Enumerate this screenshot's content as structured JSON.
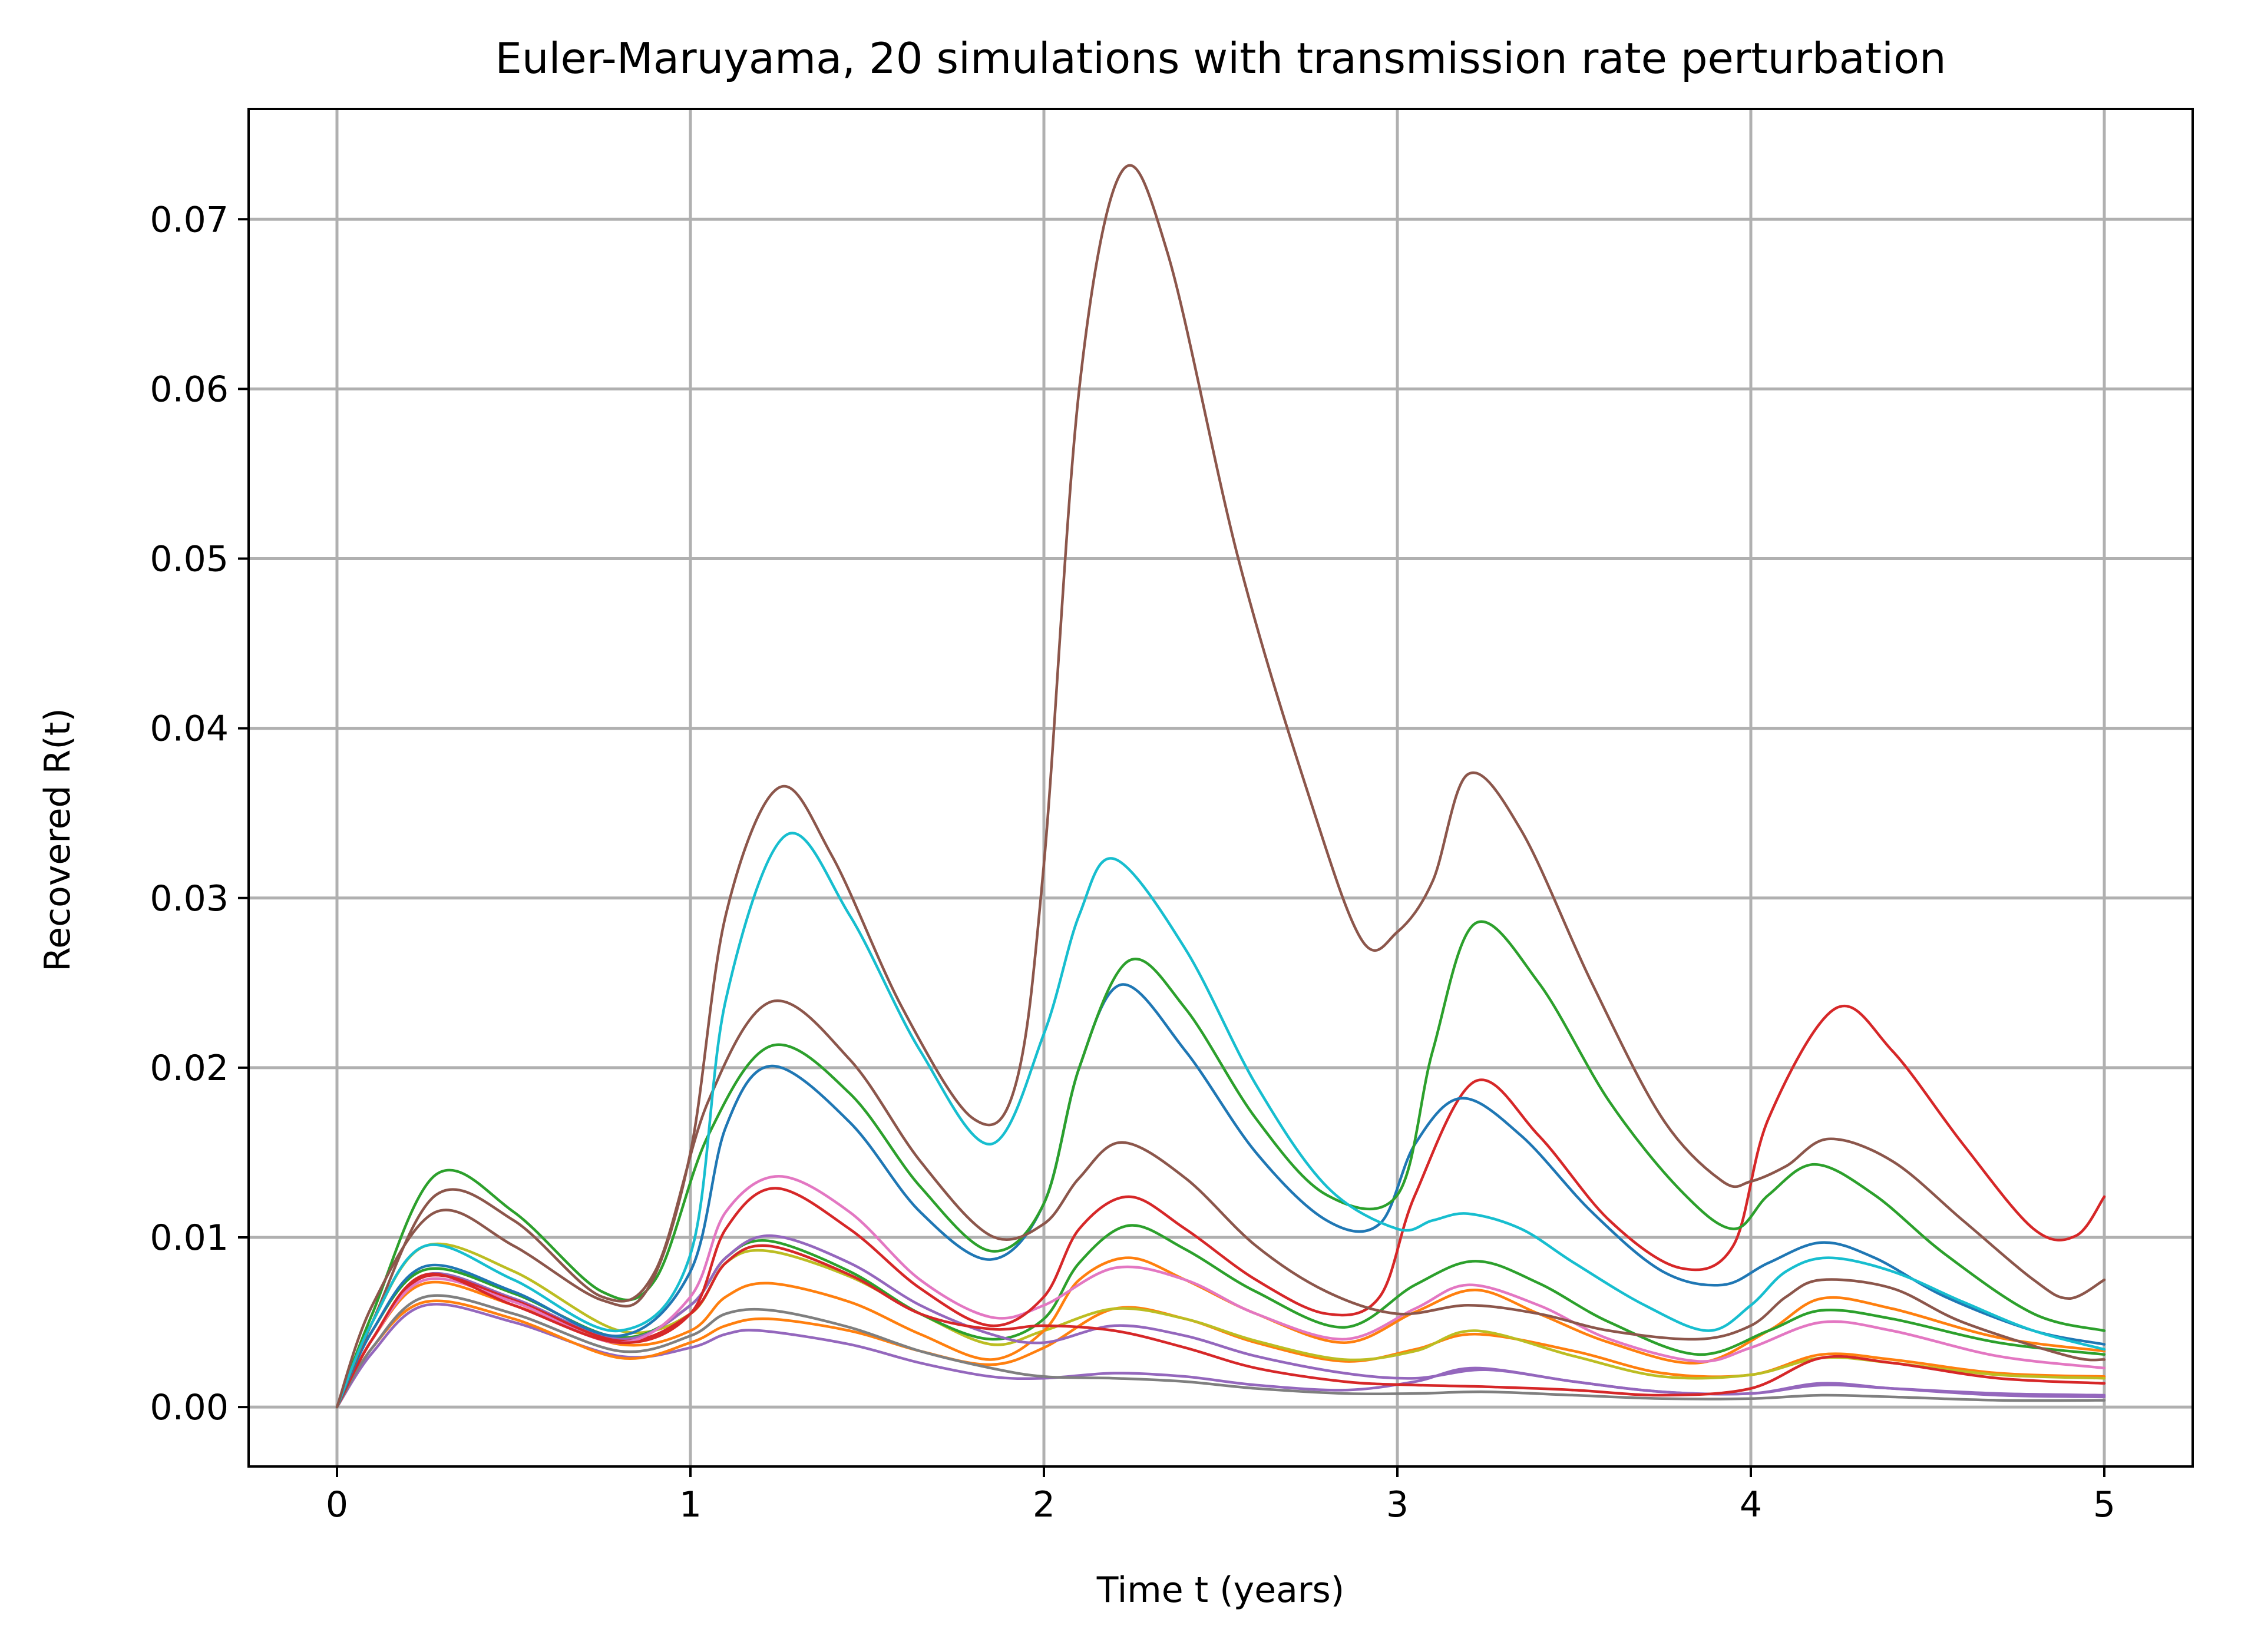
{
  "chart_data": {
    "type": "line",
    "title": "Euler-Maruyama, 20 simulations with transmission rate perturbation",
    "xlabel": "Time t (years)",
    "ylabel": "Recovered R(t)",
    "xlim": [
      -0.25,
      5.25
    ],
    "ylim": [
      -0.0035,
      0.0765
    ],
    "xticks": [
      0,
      1,
      2,
      3,
      4,
      5
    ],
    "xtick_labels": [
      "0",
      "1",
      "2",
      "3",
      "4",
      "5"
    ],
    "yticks": [
      0.0,
      0.01,
      0.02,
      0.03,
      0.04,
      0.05,
      0.06,
      0.07
    ],
    "ytick_labels": [
      "0.00",
      "0.01",
      "0.02",
      "0.03",
      "0.04",
      "0.05",
      "0.06",
      "0.07"
    ],
    "grid": true,
    "legend": "none",
    "series": [
      {
        "color": "#8c564b",
        "x": [
          0,
          0.1,
          0.28,
          0.5,
          0.75,
          0.88,
          1.0,
          1.1,
          1.25,
          1.4,
          1.6,
          1.8,
          1.92,
          2.0,
          2.1,
          2.22,
          2.35,
          2.55,
          2.75,
          2.9,
          3.0,
          3.1,
          3.2,
          3.35,
          3.55,
          3.75,
          3.92,
          4.0,
          4.1,
          4.22,
          4.4,
          4.6,
          4.8,
          4.9,
          5.0
        ],
        "y": [
          0,
          0.006,
          0.0115,
          0.0095,
          0.0063,
          0.007,
          0.015,
          0.029,
          0.0365,
          0.0325,
          0.0235,
          0.017,
          0.019,
          0.032,
          0.06,
          0.0728,
          0.068,
          0.05,
          0.036,
          0.0275,
          0.028,
          0.031,
          0.0373,
          0.034,
          0.025,
          0.017,
          0.0133,
          0.0133,
          0.0142,
          0.0158,
          0.0145,
          0.011,
          0.0075,
          0.0064,
          0.0075
        ]
      },
      {
        "color": "#17becf",
        "x": [
          0,
          0.1,
          0.25,
          0.5,
          0.8,
          1.0,
          1.1,
          1.27,
          1.45,
          1.65,
          1.85,
          2.0,
          2.1,
          2.2,
          2.4,
          2.6,
          2.8,
          3.0,
          3.1,
          3.2,
          3.35,
          3.5,
          3.7,
          3.88,
          4.0,
          4.1,
          4.22,
          4.4,
          4.6,
          4.8,
          5.0
        ],
        "y": [
          0,
          0.005,
          0.0095,
          0.0075,
          0.0045,
          0.009,
          0.024,
          0.0337,
          0.029,
          0.021,
          0.0155,
          0.022,
          0.029,
          0.0323,
          0.027,
          0.019,
          0.013,
          0.0105,
          0.011,
          0.0114,
          0.0105,
          0.0085,
          0.006,
          0.0045,
          0.006,
          0.008,
          0.0088,
          0.008,
          0.0062,
          0.0045,
          0.0034
        ]
      },
      {
        "color": "#8c564b",
        "x": [
          0,
          0.1,
          0.28,
          0.5,
          0.75,
          0.9,
          1.05,
          1.23,
          1.45,
          1.65,
          1.85,
          2.0,
          2.1,
          2.22,
          2.4,
          2.6,
          2.8,
          3.0,
          3.2,
          3.4,
          3.6,
          3.85,
          4.0,
          4.1,
          4.2,
          4.4,
          4.6,
          4.9,
          5.0
        ],
        "y": [
          0,
          0.005,
          0.0125,
          0.011,
          0.0065,
          0.008,
          0.018,
          0.0239,
          0.0205,
          0.0145,
          0.0101,
          0.0108,
          0.0135,
          0.0156,
          0.0135,
          0.0095,
          0.0068,
          0.0055,
          0.006,
          0.0055,
          0.0045,
          0.004,
          0.0048,
          0.0065,
          0.0075,
          0.007,
          0.005,
          0.003,
          0.0028
        ]
      },
      {
        "color": "#2ca02c",
        "x": [
          0,
          0.1,
          0.28,
          0.5,
          0.75,
          0.9,
          1.05,
          1.23,
          1.45,
          1.65,
          1.85,
          2.0,
          2.1,
          2.24,
          2.4,
          2.6,
          2.8,
          3.0,
          3.1,
          3.22,
          3.4,
          3.6,
          3.8,
          3.95,
          4.05,
          4.18,
          4.35,
          4.55,
          4.8,
          5.0
        ],
        "y": [
          0,
          0.0055,
          0.0137,
          0.0115,
          0.0068,
          0.0075,
          0.016,
          0.0213,
          0.0185,
          0.013,
          0.0092,
          0.012,
          0.02,
          0.0263,
          0.0235,
          0.017,
          0.0125,
          0.0125,
          0.021,
          0.0285,
          0.025,
          0.018,
          0.0128,
          0.0105,
          0.0125,
          0.0143,
          0.0125,
          0.009,
          0.0055,
          0.0045
        ]
      },
      {
        "color": "#1f77b4",
        "x": [
          0,
          0.1,
          0.25,
          0.5,
          0.8,
          1.0,
          1.1,
          1.23,
          1.45,
          1.65,
          1.85,
          2.0,
          2.1,
          2.22,
          2.4,
          2.6,
          2.8,
          2.95,
          3.05,
          3.18,
          3.35,
          3.55,
          3.75,
          3.92,
          4.05,
          4.2,
          4.35,
          4.55,
          4.8,
          5.0
        ],
        "y": [
          0,
          0.0045,
          0.0083,
          0.0068,
          0.0042,
          0.008,
          0.0165,
          0.0201,
          0.0168,
          0.0115,
          0.0087,
          0.012,
          0.02,
          0.0249,
          0.021,
          0.015,
          0.011,
          0.0108,
          0.0155,
          0.0182,
          0.016,
          0.0115,
          0.008,
          0.0072,
          0.0085,
          0.0097,
          0.0088,
          0.0065,
          0.0045,
          0.0037
        ]
      },
      {
        "color": "#d62728",
        "x": [
          0,
          0.1,
          0.25,
          0.5,
          0.8,
          1.0,
          1.1,
          1.24,
          1.45,
          1.65,
          1.85,
          2.0,
          2.1,
          2.24,
          2.4,
          2.6,
          2.8,
          2.95,
          3.05,
          3.22,
          3.4,
          3.6,
          3.8,
          3.95,
          4.05,
          4.24,
          4.4,
          4.6,
          4.8,
          4.92,
          5.0
        ],
        "y": [
          0,
          0.004,
          0.0078,
          0.006,
          0.0038,
          0.0055,
          0.0105,
          0.0129,
          0.0105,
          0.007,
          0.0048,
          0.0065,
          0.0105,
          0.0124,
          0.0105,
          0.0075,
          0.0055,
          0.0065,
          0.0125,
          0.0192,
          0.016,
          0.011,
          0.0082,
          0.0095,
          0.017,
          0.0235,
          0.021,
          0.0155,
          0.0105,
          0.0101,
          0.0124
        ]
      },
      {
        "color": "#e377c2",
        "x": [
          0,
          0.1,
          0.25,
          0.5,
          0.8,
          1.0,
          1.1,
          1.25,
          1.45,
          1.65,
          1.85,
          2.0,
          2.2,
          2.4,
          2.6,
          2.85,
          3.05,
          3.2,
          3.4,
          3.6,
          3.85,
          4.0,
          4.2,
          4.4,
          4.7,
          5.0
        ],
        "y": [
          0,
          0.004,
          0.0075,
          0.0062,
          0.0038,
          0.0065,
          0.0115,
          0.0136,
          0.0115,
          0.0075,
          0.0053,
          0.006,
          0.0082,
          0.0075,
          0.0055,
          0.004,
          0.0058,
          0.0072,
          0.006,
          0.004,
          0.0027,
          0.0035,
          0.005,
          0.0045,
          0.003,
          0.0023
        ]
      },
      {
        "color": "#d62728",
        "x": [
          0,
          0.1,
          0.25,
          0.5,
          0.8,
          1.0,
          1.1,
          1.22,
          1.45,
          1.65,
          1.85,
          2.0,
          2.2,
          2.4,
          2.6,
          2.85,
          3.05,
          3.25,
          3.5,
          3.75,
          4.0,
          4.2,
          4.4,
          4.7,
          5.0
        ],
        "y": [
          0,
          0.004,
          0.0077,
          0.0063,
          0.0039,
          0.0055,
          0.0085,
          0.0095,
          0.0078,
          0.0055,
          0.0046,
          0.0048,
          0.0045,
          0.0035,
          0.0023,
          0.0015,
          0.0013,
          0.0012,
          0.001,
          0.0007,
          0.0011,
          0.0029,
          0.0026,
          0.0017,
          0.0014
        ]
      },
      {
        "color": "#9467bd",
        "x": [
          0,
          0.1,
          0.25,
          0.5,
          0.8,
          1.0,
          1.1,
          1.23,
          1.45,
          1.65,
          1.85,
          2.0,
          2.2,
          2.4,
          2.6,
          2.85,
          3.05,
          3.25,
          3.5,
          3.75,
          4.0,
          4.2,
          4.4,
          4.7,
          5.0
        ],
        "y": [
          0,
          0.004,
          0.0078,
          0.0064,
          0.004,
          0.006,
          0.0088,
          0.0101,
          0.0085,
          0.006,
          0.0043,
          0.0038,
          0.0048,
          0.0042,
          0.003,
          0.002,
          0.0017,
          0.0022,
          0.0015,
          0.0009,
          0.0008,
          0.0014,
          0.0011,
          0.0007,
          0.0006
        ]
      },
      {
        "color": "#2ca02c",
        "x": [
          0,
          0.1,
          0.25,
          0.5,
          0.8,
          1.0,
          1.1,
          1.22,
          1.45,
          1.65,
          1.85,
          2.0,
          2.1,
          2.24,
          2.4,
          2.6,
          2.85,
          3.05,
          3.22,
          3.4,
          3.6,
          3.85,
          4.05,
          4.2,
          4.4,
          4.7,
          5.0
        ],
        "y": [
          0,
          0.0045,
          0.0081,
          0.0067,
          0.0041,
          0.006,
          0.0088,
          0.0098,
          0.008,
          0.0055,
          0.004,
          0.0052,
          0.0085,
          0.0107,
          0.0093,
          0.0068,
          0.0047,
          0.0072,
          0.0086,
          0.0073,
          0.005,
          0.0031,
          0.0045,
          0.0057,
          0.0052,
          0.0038,
          0.0031
        ]
      },
      {
        "color": "#ff7f0e",
        "x": [
          0,
          0.1,
          0.25,
          0.5,
          0.8,
          1.0,
          1.1,
          1.22,
          1.45,
          1.65,
          1.85,
          2.0,
          2.1,
          2.24,
          2.4,
          2.6,
          2.85,
          3.05,
          3.22,
          3.4,
          3.6,
          3.85,
          4.05,
          4.2,
          4.4,
          4.7,
          5.0
        ],
        "y": [
          0,
          0.004,
          0.0073,
          0.006,
          0.0037,
          0.0045,
          0.0065,
          0.0073,
          0.0062,
          0.0043,
          0.0028,
          0.0045,
          0.0075,
          0.0088,
          0.0075,
          0.0055,
          0.0038,
          0.0056,
          0.0069,
          0.0055,
          0.0038,
          0.0026,
          0.0045,
          0.0064,
          0.0058,
          0.0041,
          0.0033
        ]
      },
      {
        "color": "#bcbd22",
        "x": [
          0,
          0.1,
          0.25,
          0.5,
          0.8,
          1.0,
          1.1,
          1.22,
          1.45,
          1.65,
          1.85,
          2.0,
          2.2,
          2.4,
          2.6,
          2.85,
          3.05,
          3.22,
          3.5,
          3.75,
          4.0,
          4.2,
          4.4,
          4.7,
          5.0
        ],
        "y": [
          0,
          0.005,
          0.0095,
          0.008,
          0.0045,
          0.0055,
          0.0085,
          0.0092,
          0.0077,
          0.0055,
          0.0037,
          0.0045,
          0.0058,
          0.0052,
          0.0039,
          0.0028,
          0.0033,
          0.0045,
          0.003,
          0.0018,
          0.0019,
          0.0029,
          0.0026,
          0.0019,
          0.0017
        ]
      },
      {
        "color": "#7f7f7f",
        "x": [
          0,
          0.1,
          0.25,
          0.5,
          0.8,
          1.0,
          1.1,
          1.23,
          1.45,
          1.65,
          1.85,
          2.0,
          2.2,
          2.4,
          2.6,
          2.85,
          3.05,
          3.25,
          3.5,
          3.75,
          4.0,
          4.2,
          4.4,
          4.7,
          5.0
        ],
        "y": [
          0,
          0.0035,
          0.0065,
          0.0055,
          0.0033,
          0.0042,
          0.0055,
          0.0057,
          0.0047,
          0.0033,
          0.0023,
          0.0018,
          0.0017,
          0.0015,
          0.0011,
          0.0008,
          0.0008,
          0.0009,
          0.0007,
          0.0005,
          0.0005,
          0.0007,
          0.0006,
          0.0004,
          0.0004
        ]
      },
      {
        "color": "#ff7f0e",
        "x": [
          0,
          0.1,
          0.25,
          0.5,
          0.8,
          1.0,
          1.1,
          1.22,
          1.45,
          1.65,
          1.85,
          2.0,
          2.2,
          2.4,
          2.6,
          2.85,
          3.05,
          3.22,
          3.5,
          3.75,
          4.0,
          4.2,
          4.4,
          4.7,
          5.0
        ],
        "y": [
          0,
          0.0035,
          0.0062,
          0.0052,
          0.0029,
          0.0038,
          0.0048,
          0.0052,
          0.0045,
          0.0033,
          0.0025,
          0.0035,
          0.0058,
          0.0052,
          0.0038,
          0.0027,
          0.0034,
          0.0043,
          0.0033,
          0.002,
          0.0019,
          0.0031,
          0.0028,
          0.002,
          0.0018
        ]
      },
      {
        "color": "#9467bd",
        "x": [
          0,
          0.1,
          0.25,
          0.5,
          0.8,
          1.0,
          1.1,
          1.2,
          1.45,
          1.65,
          1.85,
          2.0,
          2.2,
          2.4,
          2.6,
          2.85,
          3.05,
          3.22,
          3.5,
          3.75,
          4.0,
          4.2,
          4.4,
          4.7,
          5.0
        ],
        "y": [
          0,
          0.0032,
          0.006,
          0.005,
          0.003,
          0.0035,
          0.0043,
          0.0045,
          0.0037,
          0.0026,
          0.0018,
          0.0017,
          0.002,
          0.0018,
          0.0013,
          0.001,
          0.0015,
          0.0023,
          0.0015,
          0.0009,
          0.0008,
          0.0013,
          0.0011,
          0.0008,
          0.0007
        ]
      }
    ]
  }
}
